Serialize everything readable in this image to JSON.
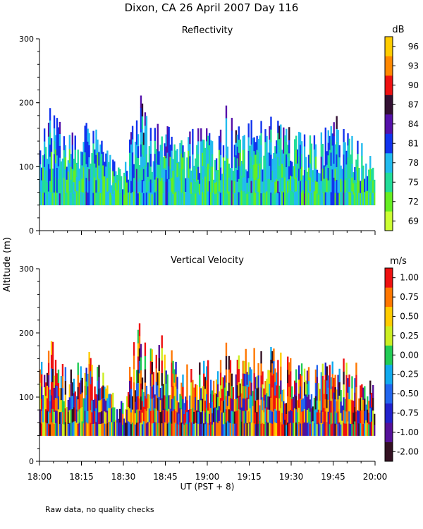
{
  "title": "Dixon, CA 26 April 2007  Day 116",
  "footnote": "Raw data, no quality checks",
  "y_label": "Altitude (m)",
  "x_label": "UT  (PST + 8)",
  "chart_data": [
    {
      "type": "heatmap",
      "title": "Reflectivity",
      "ylabel": "Altitude (m)",
      "ylim": [
        0,
        300
      ],
      "y_ticks": [
        0,
        100,
        200,
        300
      ],
      "xlim": [
        "18:00",
        "20:00"
      ],
      "x_ticks": [
        "18:00",
        "18:15",
        "18:30",
        "18:45",
        "19:00",
        "19:15",
        "19:30",
        "19:45",
        "20:00"
      ],
      "data_base_altitude": 40,
      "colorbar": {
        "unit": "dB",
        "tick_labels": [
          "69",
          "72",
          "75",
          "78",
          "81",
          "84",
          "87",
          "90",
          "93",
          "96"
        ],
        "colors": [
          "#ccff33",
          "#66ee22",
          "#22dd99",
          "#22bbee",
          "#1133ee",
          "#5511aa",
          "#331133",
          "#ee1111",
          "#ff8800",
          "#ffcc00"
        ]
      },
      "profile_tops_m": [
        {
          "time": "18:00",
          "top": 140
        },
        {
          "time": "18:02",
          "top": 180
        },
        {
          "time": "18:05",
          "top": 200
        },
        {
          "time": "18:08",
          "top": 160
        },
        {
          "time": "18:10",
          "top": 150
        },
        {
          "time": "18:15",
          "top": 160
        },
        {
          "time": "18:18",
          "top": 180
        },
        {
          "time": "18:20",
          "top": 160
        },
        {
          "time": "18:25",
          "top": 120
        },
        {
          "time": "18:28",
          "top": 100
        },
        {
          "time": "18:30",
          "top": 90
        },
        {
          "time": "18:33",
          "top": 160
        },
        {
          "time": "18:35",
          "top": 190
        },
        {
          "time": "18:36",
          "top": 220
        },
        {
          "time": "18:38",
          "top": 180
        },
        {
          "time": "18:42",
          "top": 170
        },
        {
          "time": "18:44",
          "top": 200
        },
        {
          "time": "18:45",
          "top": 200
        },
        {
          "time": "18:50",
          "top": 140
        },
        {
          "time": "18:55",
          "top": 160
        },
        {
          "time": "19:00",
          "top": 160
        },
        {
          "time": "19:03",
          "top": 130
        },
        {
          "time": "19:07",
          "top": 200
        },
        {
          "time": "19:10",
          "top": 160
        },
        {
          "time": "19:15",
          "top": 180
        },
        {
          "time": "19:20",
          "top": 170
        },
        {
          "time": "19:22",
          "top": 180
        },
        {
          "time": "19:30",
          "top": 160
        },
        {
          "time": "19:35",
          "top": 150
        },
        {
          "time": "19:40",
          "top": 150
        },
        {
          "time": "19:46",
          "top": 180
        },
        {
          "time": "19:52",
          "top": 160
        },
        {
          "time": "20:00",
          "top": 120
        }
      ]
    },
    {
      "type": "heatmap",
      "title": "Vertical Velocity",
      "ylabel": "Altitude (m)",
      "ylim": [
        0,
        300
      ],
      "y_ticks": [
        0,
        100,
        200,
        300
      ],
      "xlim": [
        "18:00",
        "20:00"
      ],
      "x_ticks": [
        "18:00",
        "18:15",
        "18:30",
        "18:45",
        "19:00",
        "19:15",
        "19:30",
        "19:45",
        "20:00"
      ],
      "xlabel": "UT  (PST + 8)",
      "data_base_altitude": 40,
      "colorbar": {
        "unit": "m/s",
        "tick_labels": [
          "-2.00",
          "-1.00",
          "-0.75",
          "-0.50",
          "-0.25",
          "0.00",
          "0.25",
          "0.50",
          "0.75",
          "1.00"
        ],
        "colors": [
          "#331122",
          "#551199",
          "#2222cc",
          "#2266ee",
          "#11aaee",
          "#22cc55",
          "#ccee22",
          "#ffcc00",
          "#ff7700",
          "#ee1111"
        ]
      },
      "profile_tops_m": [
        {
          "time": "18:00",
          "top": 140
        },
        {
          "time": "18:02",
          "top": 180
        },
        {
          "time": "18:03",
          "top": 200
        },
        {
          "time": "18:08",
          "top": 160
        },
        {
          "time": "18:10",
          "top": 150
        },
        {
          "time": "18:15",
          "top": 160
        },
        {
          "time": "18:18",
          "top": 180
        },
        {
          "time": "18:20",
          "top": 160
        },
        {
          "time": "18:25",
          "top": 120
        },
        {
          "time": "18:28",
          "top": 100
        },
        {
          "time": "18:30",
          "top": 90
        },
        {
          "time": "18:33",
          "top": 180
        },
        {
          "time": "18:35",
          "top": 200
        },
        {
          "time": "18:36",
          "top": 220
        },
        {
          "time": "18:38",
          "top": 180
        },
        {
          "time": "18:42",
          "top": 170
        },
        {
          "time": "18:44",
          "top": 200
        },
        {
          "time": "18:45",
          "top": 200
        },
        {
          "time": "18:50",
          "top": 140
        },
        {
          "time": "18:55",
          "top": 160
        },
        {
          "time": "19:00",
          "top": 160
        },
        {
          "time": "19:03",
          "top": 130
        },
        {
          "time": "19:07",
          "top": 200
        },
        {
          "time": "19:10",
          "top": 160
        },
        {
          "time": "19:15",
          "top": 180
        },
        {
          "time": "19:20",
          "top": 170
        },
        {
          "time": "19:22",
          "top": 180
        },
        {
          "time": "19:30",
          "top": 160
        },
        {
          "time": "19:35",
          "top": 150
        },
        {
          "time": "19:40",
          "top": 150
        },
        {
          "time": "19:46",
          "top": 160
        },
        {
          "time": "19:52",
          "top": 160
        },
        {
          "time": "20:00",
          "top": 120
        }
      ]
    }
  ]
}
